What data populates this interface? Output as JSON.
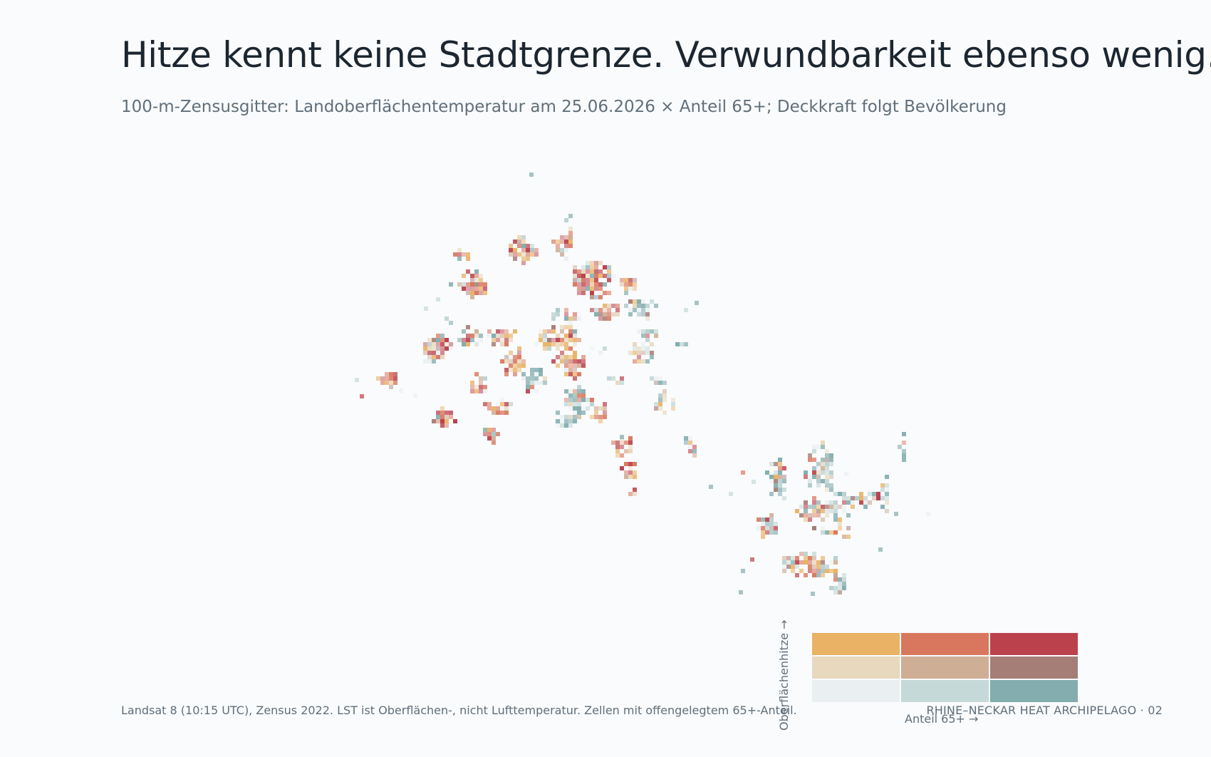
{
  "title": "Hitze kennt keine Stadtgrenze. Verwundbarkeit ebenso wenig.",
  "subtitle": "100-m-Zensusgitter: Landoberflächentemperatur am 25.06.2026 × Anteil 65+; Deckkraft folgt Bevölkerung",
  "legend": {
    "y_label": "Oberflächenhitze →",
    "x_label": "Anteil 65+ →",
    "colors": [
      [
        "#e9b265",
        "#d9775e",
        "#bb414c"
      ],
      [
        "#e8d8bd",
        "#cfae96",
        "#a57e77"
      ],
      [
        "#eaeff1",
        "#c5d9d8",
        "#83adae"
      ]
    ]
  },
  "map": {
    "region": "Rhine-Neckar",
    "clusters": [
      {
        "area": "northwest",
        "dominant": "hot"
      },
      {
        "area": "central",
        "dominant": "mixed"
      },
      {
        "area": "southeast",
        "dominant": "cool-older"
      }
    ]
  },
  "footer": {
    "source": "Landsat 8 (10:15 UTC), Zensus 2022. LST ist Oberflächen-, nicht Lufttemperatur. Zellen mit offengelegtem 65+-Anteil.",
    "brand": "RHINE–NECKAR HEAT ARCHIPELAGO · 02"
  }
}
